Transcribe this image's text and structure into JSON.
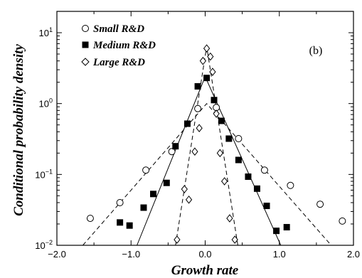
{
  "chart_data": {
    "type": "scatter",
    "panel_label": "(b)",
    "xlabel": "Growth rate",
    "ylabel": "Conditional probability density",
    "xlim": [
      -2.0,
      2.0
    ],
    "ylim": [
      0.01,
      20
    ],
    "yscale": "log",
    "xticks": [
      -2.0,
      -1.0,
      0.0,
      1.0,
      2.0
    ],
    "xtick_labels": [
      "−2.0",
      "−1.0",
      "0.0",
      "1.0",
      "2.0"
    ],
    "yticks": [
      {
        "value": 0.01,
        "base": "10",
        "exp": "−2"
      },
      {
        "value": 0.1,
        "base": "10",
        "exp": "−1"
      },
      {
        "value": 1,
        "base": "10",
        "exp": "0"
      },
      {
        "value": 10,
        "base": "10",
        "exp": "1"
      }
    ],
    "legend_position": "top-left",
    "series": [
      {
        "name": "Small R&D",
        "marker": "circle",
        "fit_style": "dashed",
        "x": [
          -1.55,
          -1.15,
          -0.8,
          -0.45,
          -0.1,
          0.15,
          0.45,
          0.8,
          1.15,
          1.55,
          1.85
        ],
        "y": [
          0.024,
          0.04,
          0.115,
          0.21,
          0.85,
          0.88,
          0.32,
          0.115,
          0.07,
          0.038,
          0.022
        ],
        "fit": {
          "x": [
            -1.65,
            0.02,
            1.7
          ],
          "y": [
            0.01,
            1.0,
            0.01
          ]
        }
      },
      {
        "name": "Medium R&D",
        "marker": "square",
        "fit_style": "solid",
        "x": [
          -1.15,
          -1.02,
          -0.83,
          -0.7,
          -0.52,
          -0.4,
          -0.24,
          -0.1,
          0.02,
          0.12,
          0.22,
          0.32,
          0.45,
          0.58,
          0.7,
          0.83,
          0.96,
          1.1
        ],
        "y": [
          0.021,
          0.019,
          0.034,
          0.053,
          0.076,
          0.25,
          0.52,
          1.75,
          2.3,
          1.12,
          0.57,
          0.32,
          0.16,
          0.093,
          0.063,
          0.036,
          0.016,
          0.018
        ],
        "fit": {
          "x": [
            -0.92,
            0.0,
            1.02
          ],
          "y": [
            0.01,
            2.4,
            0.01
          ]
        }
      },
      {
        "name": "Large R&D",
        "marker": "diamond",
        "fit_style": "dashed",
        "x": [
          -0.38,
          -0.28,
          -0.22,
          -0.14,
          -0.08,
          -0.03,
          0.02,
          0.07,
          0.1,
          0.15,
          0.2,
          0.26,
          0.33,
          0.4
        ],
        "y": [
          0.012,
          0.062,
          0.044,
          0.21,
          0.45,
          4.0,
          6.0,
          4.6,
          2.8,
          0.72,
          0.2,
          0.08,
          0.024,
          0.012
        ],
        "fit": {
          "x": [
            -0.4,
            0.02,
            0.44
          ],
          "y": [
            0.01,
            6.4,
            0.01
          ]
        }
      }
    ]
  }
}
